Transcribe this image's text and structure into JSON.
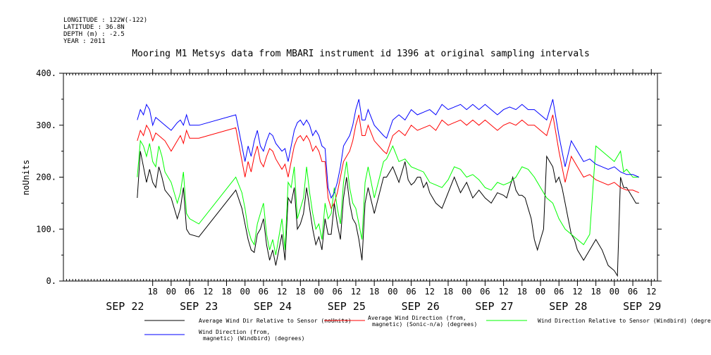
{
  "header": {
    "longitude": "LONGITUDE : 122W(-122)",
    "latitude": "LATITUDE : 36.8N",
    "depth": "DEPTH (m) : -2.5",
    "year": "YEAR : 2011"
  },
  "chart_data": {
    "type": "line",
    "title": "Mooring M1 Metsys data from MBARI instrument id 1396 at original sampling intervals",
    "ylabel": "noUnits",
    "ylim": [
      0,
      400
    ],
    "yticks": [
      0,
      100,
      200,
      300,
      400
    ],
    "ytick_labels": [
      "0.",
      "100.",
      "200.",
      "300.",
      "400."
    ],
    "xlim_hours": [
      -11,
      109
    ],
    "hour_ticks": [
      {
        "h": 18,
        "label": "18"
      },
      {
        "h": 24,
        "label": "00"
      },
      {
        "h": 30,
        "label": "06"
      },
      {
        "h": 36,
        "label": "12"
      },
      {
        "h": 42,
        "label": "18"
      },
      {
        "h": 48,
        "label": "00"
      },
      {
        "h": 54,
        "label": "06"
      },
      {
        "h": 60,
        "label": "12"
      },
      {
        "h": 66,
        "label": "18"
      },
      {
        "h": 72,
        "label": "00"
      },
      {
        "h": 78,
        "label": "06"
      },
      {
        "h": 84,
        "label": "12"
      },
      {
        "h": 90,
        "label": "18"
      },
      {
        "h": 96,
        "label": "00"
      },
      {
        "h": 102,
        "label": "06"
      },
      {
        "h": 108,
        "label": "12"
      },
      {
        "h": 114,
        "label": "18"
      },
      {
        "h": 120,
        "label": "00"
      },
      {
        "h": 126,
        "label": "06"
      },
      {
        "h": 132,
        "label": "12"
      },
      {
        "h": 138,
        "label": "18"
      },
      {
        "h": 144,
        "label": "00"
      },
      {
        "h": 150,
        "label": "06"
      },
      {
        "h": 156,
        "label": "12"
      },
      {
        "h": 162,
        "label": "18"
      },
      {
        "h": 168,
        "label": "00"
      },
      {
        "h": 174,
        "label": "06"
      },
      {
        "h": 180,
        "label": "12"
      }
    ],
    "date_labels": [
      {
        "h": 9,
        "label": "SEP 22"
      },
      {
        "h": 33,
        "label": "SEP 23"
      },
      {
        "h": 57,
        "label": "SEP 24"
      },
      {
        "h": 81,
        "label": "SEP 25"
      },
      {
        "h": 105,
        "label": "SEP 26"
      },
      {
        "h": 129,
        "label": "SEP 27"
      },
      {
        "h": 153,
        "label": "SEP 28"
      },
      {
        "h": 177,
        "label": "SEP 29"
      }
    ],
    "x_hours_note": "hours from 2011-09-22 00:00",
    "series": [
      {
        "name": "Average Wind Dir Relative to Sensor (noUnits)",
        "color": "#000000",
        "x": [
          13,
          14,
          15,
          16,
          17,
          18,
          19,
          20,
          21,
          22,
          24,
          26,
          27,
          28,
          29,
          30,
          33,
          45,
          47,
          48,
          49,
          50,
          51,
          52,
          53,
          54,
          55,
          56,
          57,
          58,
          60,
          61,
          62,
          63,
          64,
          65,
          66,
          67,
          68,
          69,
          70,
          71,
          72,
          73,
          74,
          75,
          76,
          77,
          78,
          79,
          80,
          81,
          82,
          83,
          84,
          85,
          86,
          87,
          88,
          90,
          93,
          94,
          96,
          98,
          99,
          100,
          101,
          102,
          103,
          104,
          105,
          106,
          107,
          108,
          109,
          110,
          112,
          114,
          116,
          118,
          120,
          122,
          124,
          126,
          128,
          130,
          132,
          133,
          134,
          135,
          136,
          137,
          138,
          139,
          140,
          141,
          142,
          143,
          144,
          145,
          146,
          147,
          148,
          149,
          150,
          151,
          152,
          153,
          154,
          155,
          156,
          158,
          160,
          162,
          164,
          166,
          168,
          169,
          170,
          171,
          172,
          173,
          174,
          175,
          176
        ],
        "values": [
          160,
          250,
          220,
          190,
          215,
          190,
          180,
          220,
          200,
          175,
          160,
          120,
          140,
          180,
          100,
          90,
          85,
          175,
          140,
          110,
          80,
          60,
          55,
          90,
          100,
          120,
          70,
          40,
          60,
          30,
          90,
          40,
          160,
          150,
          180,
          100,
          110,
          130,
          180,
          140,
          100,
          70,
          85,
          60,
          120,
          90,
          90,
          150,
          110,
          80,
          160,
          200,
          150,
          120,
          110,
          80,
          40,
          150,
          180,
          130,
          200,
          200,
          220,
          190,
          210,
          230,
          195,
          185,
          190,
          200,
          200,
          180,
          190,
          170,
          160,
          150,
          140,
          170,
          200,
          170,
          190,
          160,
          175,
          160,
          150,
          170,
          165,
          160,
          180,
          200,
          175,
          165,
          165,
          160,
          140,
          120,
          80,
          60,
          80,
          100,
          240,
          230,
          220,
          190,
          200,
          180,
          150,
          120,
          90,
          80,
          60,
          40,
          60,
          80,
          60,
          30,
          20,
          10,
          200,
          180,
          180,
          170,
          160,
          150,
          150
        ]
      },
      {
        "name": "Average Wind Direction (from, magnetic) (Sonic-n/a) (degrees)",
        "color": "#ff0000",
        "x": [
          13,
          14,
          15,
          16,
          17,
          18,
          19,
          20,
          21,
          22,
          24,
          26,
          27,
          28,
          29,
          30,
          33,
          45,
          48,
          49,
          50,
          51,
          52,
          53,
          54,
          55,
          56,
          57,
          58,
          60,
          61,
          62,
          63,
          64,
          65,
          66,
          67,
          68,
          69,
          70,
          71,
          72,
          73,
          74,
          75,
          76,
          77,
          78,
          79,
          80,
          81,
          82,
          83,
          84,
          85,
          86,
          87,
          88,
          90,
          93,
          94,
          96,
          98,
          100,
          102,
          104,
          106,
          108,
          110,
          112,
          114,
          116,
          118,
          120,
          122,
          124,
          126,
          128,
          130,
          132,
          134,
          136,
          138,
          140,
          142,
          144,
          146,
          148,
          150,
          152,
          154,
          156,
          158,
          160,
          162,
          164,
          166,
          168,
          170,
          172,
          174,
          176
        ],
        "values": [
          270,
          290,
          280,
          300,
          290,
          270,
          285,
          280,
          275,
          270,
          250,
          270,
          280,
          265,
          290,
          275,
          275,
          295,
          200,
          230,
          210,
          240,
          260,
          230,
          220,
          240,
          255,
          250,
          235,
          215,
          225,
          200,
          230,
          260,
          275,
          280,
          270,
          280,
          270,
          250,
          260,
          250,
          230,
          230,
          160,
          140,
          150,
          170,
          200,
          230,
          240,
          250,
          270,
          300,
          320,
          280,
          280,
          300,
          270,
          250,
          245,
          280,
          290,
          280,
          300,
          290,
          295,
          300,
          290,
          310,
          300,
          305,
          310,
          300,
          310,
          300,
          310,
          300,
          290,
          300,
          305,
          300,
          310,
          300,
          300,
          290,
          280,
          320,
          250,
          190,
          240,
          220,
          200,
          205,
          195,
          190,
          185,
          190,
          180,
          175,
          175,
          170
        ]
      },
      {
        "name": "Wind Direction Relative to Sensor (Windbird) (degrees)",
        "color": "#00ff00",
        "x": [
          13,
          14,
          15,
          16,
          17,
          18,
          19,
          20,
          21,
          22,
          24,
          26,
          27,
          28,
          29,
          30,
          33,
          45,
          47,
          48,
          49,
          50,
          51,
          52,
          53,
          54,
          55,
          56,
          57,
          58,
          60,
          61,
          62,
          63,
          64,
          65,
          66,
          67,
          68,
          69,
          70,
          71,
          72,
          73,
          74,
          75,
          76,
          77,
          78,
          79,
          80,
          81,
          82,
          83,
          84,
          85,
          86,
          87,
          88,
          90,
          93,
          94,
          96,
          98,
          100,
          102,
          104,
          106,
          108,
          110,
          112,
          114,
          116,
          118,
          120,
          122,
          124,
          126,
          128,
          130,
          132,
          134,
          136,
          138,
          140,
          142,
          144,
          146,
          148,
          150,
          152,
          154,
          156,
          158,
          160,
          162,
          164,
          166,
          168,
          169,
          170,
          171,
          172,
          174,
          176
        ],
        "values": [
          200,
          270,
          260,
          240,
          265,
          230,
          220,
          260,
          240,
          210,
          190,
          150,
          170,
          210,
          130,
          120,
          110,
          200,
          170,
          140,
          100,
          80,
          70,
          110,
          130,
          150,
          90,
          60,
          80,
          50,
          120,
          60,
          190,
          180,
          220,
          120,
          140,
          160,
          220,
          170,
          130,
          100,
          110,
          80,
          150,
          120,
          130,
          180,
          140,
          110,
          190,
          230,
          180,
          150,
          140,
          110,
          80,
          190,
          220,
          160,
          230,
          235,
          260,
          230,
          235,
          220,
          215,
          210,
          190,
          185,
          180,
          195,
          220,
          215,
          200,
          205,
          195,
          180,
          175,
          190,
          185,
          190,
          200,
          220,
          215,
          200,
          180,
          160,
          150,
          120,
          100,
          90,
          80,
          70,
          90,
          260,
          250,
          240,
          230,
          240,
          250,
          210,
          215,
          200,
          200
        ]
      },
      {
        "name": "Wind Direction (from, magnetic) (Windbird) (degrees)",
        "color": "#0000ff",
        "x": [
          13,
          14,
          15,
          16,
          17,
          18,
          19,
          20,
          21,
          22,
          24,
          26,
          27,
          28,
          29,
          30,
          33,
          45,
          48,
          49,
          50,
          51,
          52,
          53,
          54,
          55,
          56,
          57,
          58,
          60,
          61,
          62,
          63,
          64,
          65,
          66,
          67,
          68,
          69,
          70,
          71,
          72,
          73,
          74,
          75,
          76,
          77,
          78,
          79,
          80,
          81,
          82,
          83,
          84,
          85,
          86,
          87,
          88,
          90,
          93,
          94,
          96,
          98,
          100,
          102,
          104,
          106,
          108,
          110,
          112,
          114,
          116,
          118,
          120,
          122,
          124,
          126,
          128,
          130,
          132,
          134,
          136,
          138,
          140,
          142,
          144,
          146,
          148,
          150,
          152,
          154,
          156,
          158,
          160,
          162,
          164,
          166,
          168,
          170,
          172,
          174,
          176
        ],
        "values": [
          310,
          330,
          320,
          340,
          330,
          300,
          315,
          310,
          305,
          300,
          290,
          305,
          310,
          300,
          320,
          300,
          300,
          320,
          230,
          260,
          240,
          270,
          290,
          260,
          250,
          270,
          285,
          280,
          265,
          250,
          255,
          230,
          260,
          290,
          305,
          310,
          300,
          310,
          300,
          280,
          290,
          280,
          260,
          255,
          180,
          160,
          170,
          190,
          220,
          260,
          270,
          280,
          300,
          330,
          350,
          310,
          310,
          330,
          300,
          280,
          275,
          310,
          320,
          310,
          330,
          320,
          325,
          330,
          320,
          340,
          330,
          335,
          340,
          330,
          340,
          330,
          340,
          330,
          320,
          330,
          335,
          330,
          340,
          330,
          330,
          320,
          310,
          350,
          280,
          220,
          270,
          250,
          230,
          235,
          225,
          220,
          215,
          220,
          210,
          205,
          205,
          200
        ]
      }
    ]
  },
  "legend": {
    "black_line1": "Average Wind Dir Relative to Sensor (noUnits)",
    "red_line1": "Average Wind Direction (from,",
    "red_line2": "magnetic) (Sonic-n/a) (degrees)",
    "green_line1": "Wind Direction Relative to Sensor (Windbird) (degrees)",
    "blue_line1": "Wind Direction (from,",
    "blue_line2": "magnetic) (Windbird) (degrees)"
  }
}
